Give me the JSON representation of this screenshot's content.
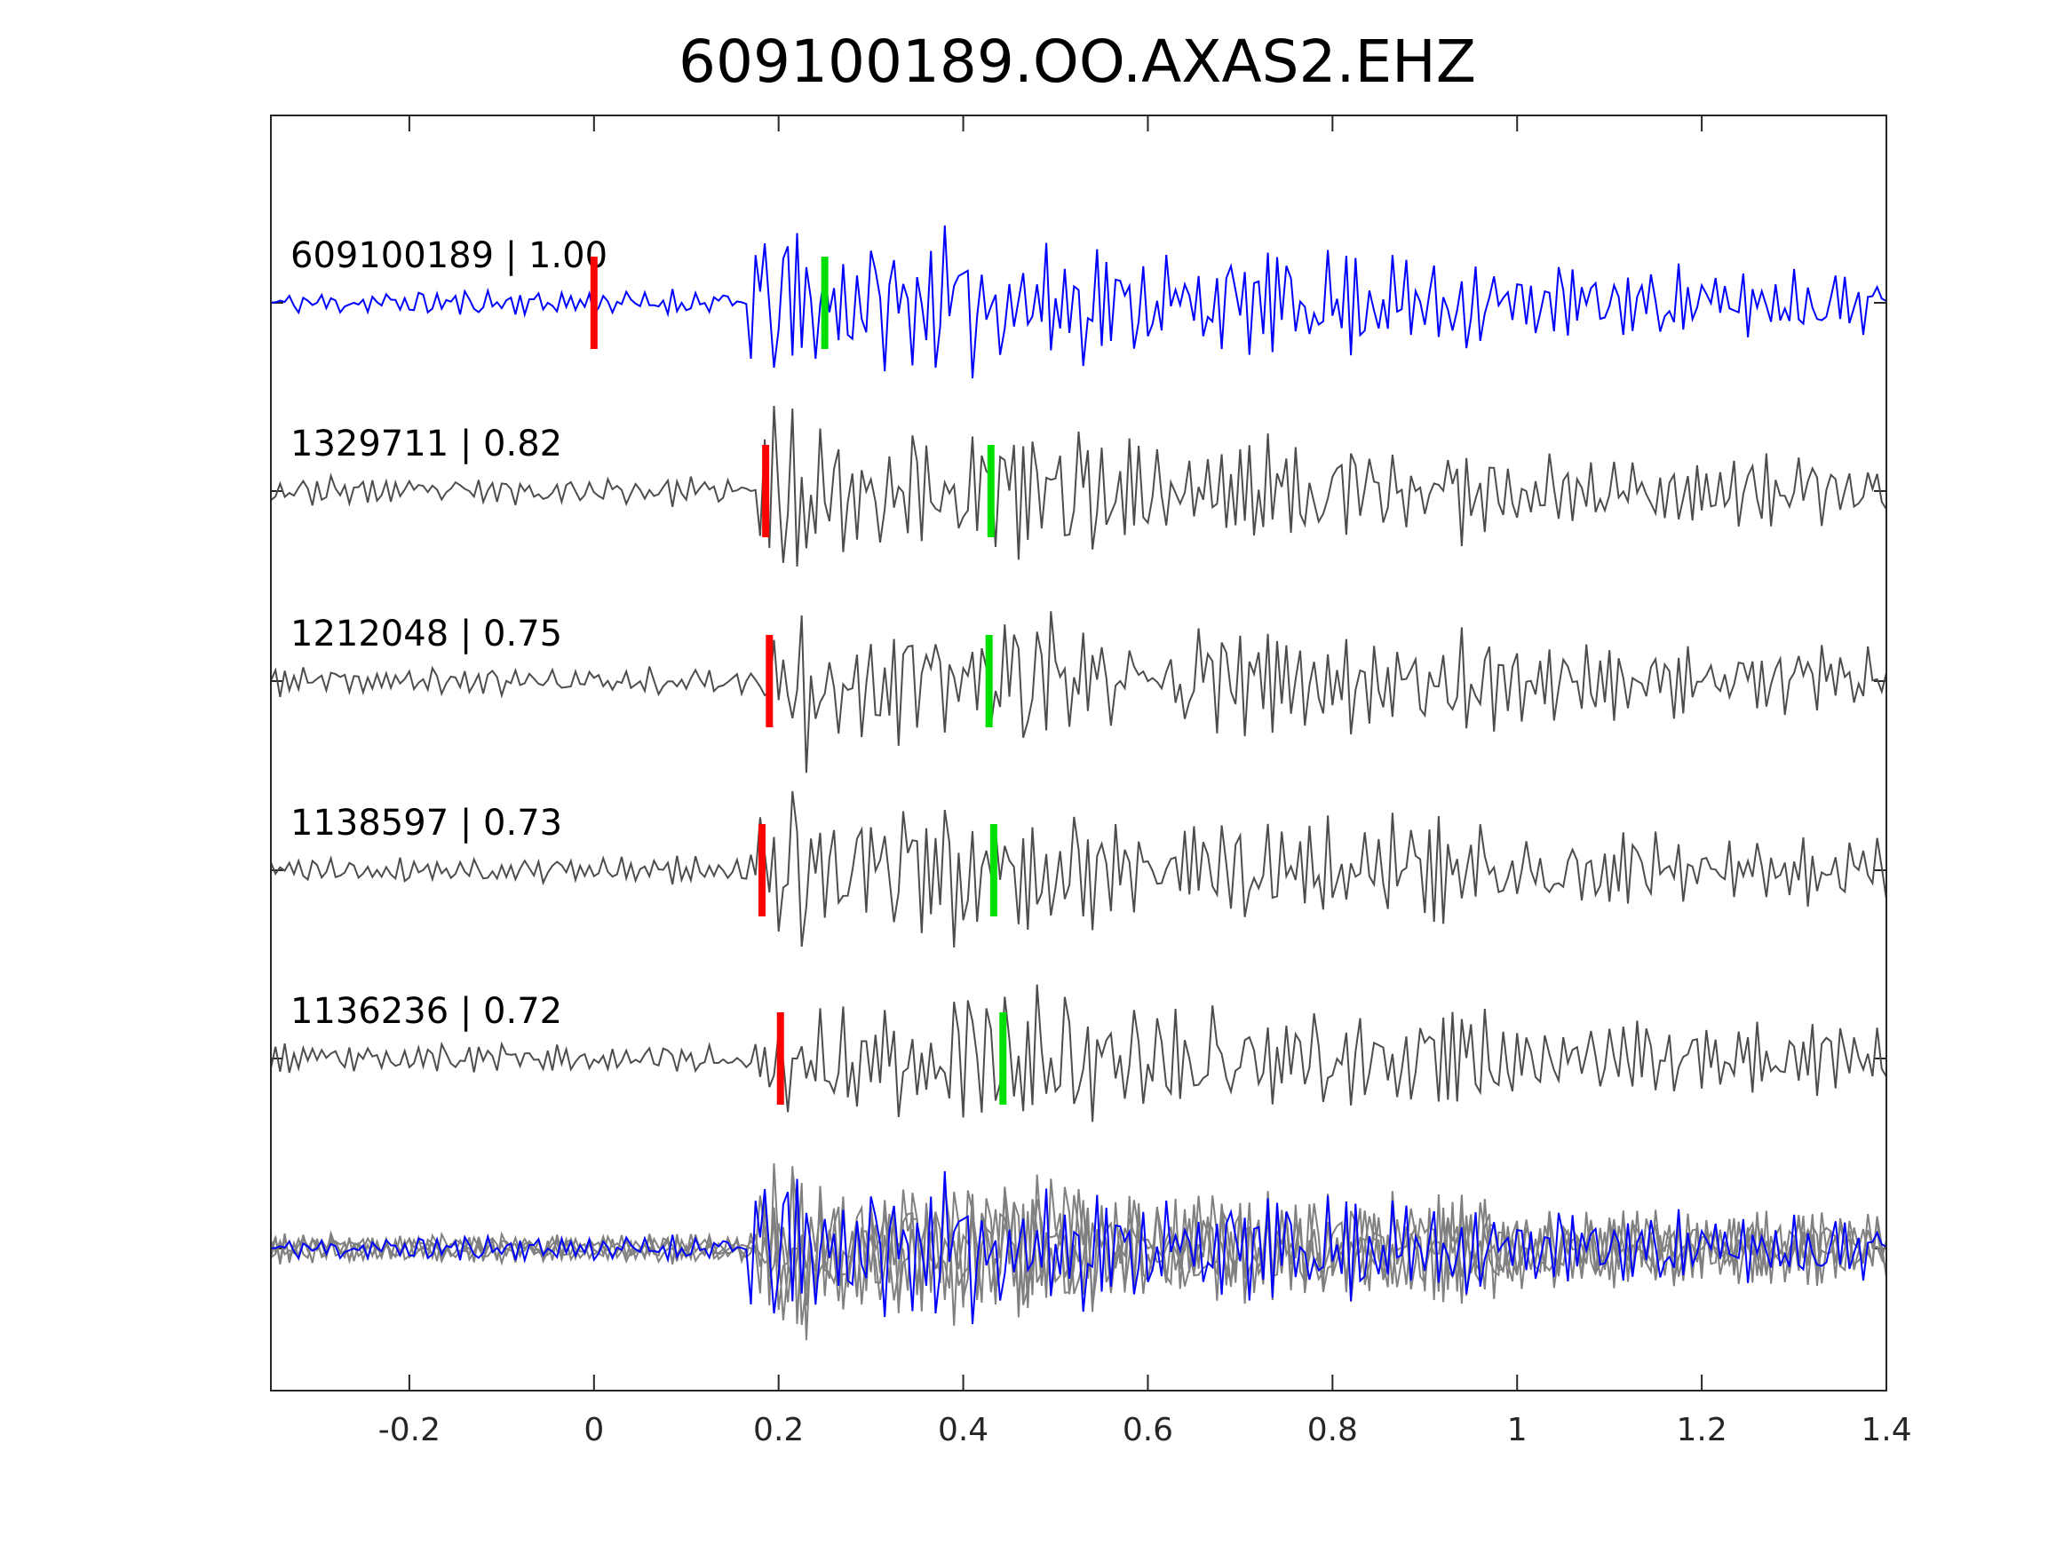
{
  "chart_data": {
    "type": "line",
    "title": "609100189.OO.AXAS2.EHZ",
    "xlabel": "",
    "ylabel": "",
    "xlim": [
      -0.35,
      1.4
    ],
    "xticks": [
      -0.2,
      0,
      0.2,
      0.4,
      0.6,
      0.8,
      1,
      1.2,
      1.4
    ],
    "xtick_labels": [
      "-0.2",
      "0",
      "0.2",
      "0.4",
      "0.6",
      "0.8",
      "1",
      "1.2",
      "1.4"
    ],
    "grid": false,
    "sample_interval": 0.005,
    "series": [
      {
        "name": "609100189",
        "label": "609100189 | 1.00",
        "correlation": 1.0,
        "color": "#0000ff",
        "p_pick": 0.0,
        "s_pick": 0.25,
        "onset": 0.17,
        "seed": 11
      },
      {
        "name": "1329711",
        "label": "1329711 | 0.82",
        "correlation": 0.82,
        "color": "#4d4d4d",
        "p_pick": 0.186,
        "s_pick": 0.43,
        "onset": 0.18,
        "seed": 23
      },
      {
        "name": "1212048",
        "label": "1212048 | 0.75",
        "correlation": 0.75,
        "color": "#4d4d4d",
        "p_pick": 0.19,
        "s_pick": 0.428,
        "onset": 0.18,
        "seed": 37
      },
      {
        "name": "1138597",
        "label": "1138597 | 0.73",
        "correlation": 0.73,
        "color": "#4d4d4d",
        "p_pick": 0.182,
        "s_pick": 0.433,
        "onset": 0.18,
        "seed": 41
      },
      {
        "name": "1136236",
        "label": "1136236 | 0.72",
        "correlation": 0.72,
        "color": "#4d4d4d",
        "p_pick": 0.202,
        "s_pick": 0.443,
        "onset": 0.18,
        "seed": 53
      }
    ],
    "stack": {
      "name": "overlay",
      "reference_color": "#0000ff",
      "others_color": "#808080"
    },
    "pick_colors": {
      "p": "#ff0000",
      "s": "#00e000"
    }
  }
}
